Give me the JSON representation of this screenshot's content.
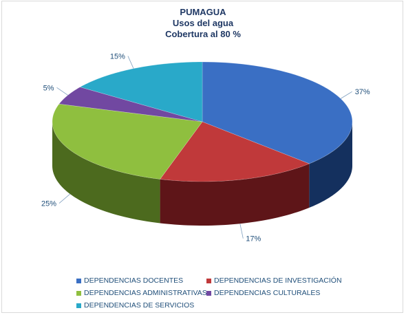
{
  "chart_data": {
    "type": "pie",
    "style": "3d",
    "title_lines": [
      "PUMAGUA",
      "Usos del agua",
      "Cobertura al 80 %"
    ],
    "slices": [
      {
        "name": "DEPENDENCIAS DOCENTES",
        "value": 37,
        "label": "37%",
        "color": "#3a6fc4",
        "dark": "#14305e"
      },
      {
        "name": "DEPENDENCIAS DE INVESTIGACIÓN",
        "value": 17,
        "label": "17%",
        "color": "#c0393a",
        "dark": "#5e1518"
      },
      {
        "name": "DEPENDENCIAS ADMINISTRATIVAS",
        "value": 25,
        "label": "25%",
        "color": "#8fbf3f",
        "dark": "#4c6a1e"
      },
      {
        "name": "DEPENDENCIAS CULTURALES",
        "value": 5,
        "label": "5%",
        "color": "#7148a1",
        "dark": "#3c2258"
      },
      {
        "name": "DEPENDENCIAS DE  SERVICIOS",
        "value": 15,
        "label": "15%",
        "color": "#29a9c9",
        "dark": "#0f5f73"
      }
    ],
    "legend_position": "bottom"
  }
}
